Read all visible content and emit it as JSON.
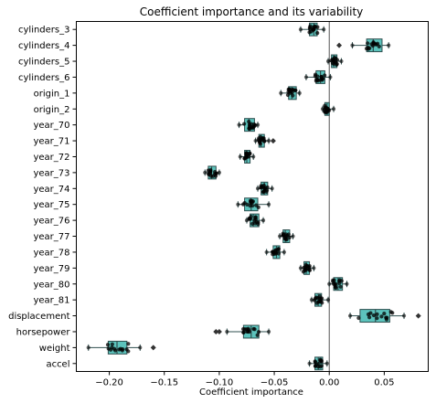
{
  "chart_data": {
    "type": "boxplot",
    "title": "Coefficient importance and its variability",
    "xlabel": "Coefficient importance",
    "ylabel": "",
    "xlim": [
      -0.23,
      0.09
    ],
    "xticks": [
      {
        "value": -0.2,
        "label": "−0.20"
      },
      {
        "value": -0.15,
        "label": "−0.15"
      },
      {
        "value": -0.1,
        "label": "−0.10"
      },
      {
        "value": -0.05,
        "label": "−0.05"
      },
      {
        "value": 0.0,
        "label": "0.00"
      },
      {
        "value": 0.05,
        "label": "0.05"
      }
    ],
    "reference_line": 0.0,
    "grid": false,
    "colors": {
      "box": "#3fb8b0",
      "box_edge": "#2f4f4f",
      "point": "#000000",
      "reference": "#555555"
    },
    "categories": [
      "cylinders_3",
      "cylinders_4",
      "cylinders_5",
      "cylinders_6",
      "origin_1",
      "origin_2",
      "year_70",
      "year_71",
      "year_72",
      "year_73",
      "year_74",
      "year_75",
      "year_76",
      "year_77",
      "year_78",
      "year_79",
      "year_80",
      "year_81",
      "displacement",
      "horsepower",
      "weight",
      "accel"
    ],
    "boxes": [
      {
        "name": "cylinders_3",
        "wlo": -0.026,
        "q1": -0.018,
        "med": -0.014,
        "q3": -0.011,
        "whi": -0.005
      },
      {
        "name": "cylinders_4",
        "wlo": 0.021,
        "q1": 0.034,
        "med": 0.04,
        "q3": 0.048,
        "whi": 0.054,
        "outliers": [
          0.009
        ]
      },
      {
        "name": "cylinders_5",
        "wlo": -0.001,
        "q1": 0.002,
        "med": 0.004,
        "q3": 0.007,
        "whi": 0.011
      },
      {
        "name": "cylinders_6",
        "wlo": -0.021,
        "q1": -0.012,
        "med": -0.008,
        "q3": -0.004,
        "whi": 0.001
      },
      {
        "name": "origin_1",
        "wlo": -0.044,
        "q1": -0.037,
        "med": -0.034,
        "q3": -0.03,
        "whi": -0.027
      },
      {
        "name": "origin_2",
        "wlo": -0.006,
        "q1": -0.004,
        "med": -0.002,
        "q3": 0.0,
        "whi": 0.004
      },
      {
        "name": "year_70",
        "wlo": -0.082,
        "q1": -0.077,
        "med": -0.073,
        "q3": -0.068,
        "whi": -0.065
      },
      {
        "name": "year_71",
        "wlo": -0.067,
        "q1": -0.064,
        "med": -0.062,
        "q3": -0.059,
        "whi": -0.055,
        "outliers": [
          -0.051
        ]
      },
      {
        "name": "year_72",
        "wlo": -0.081,
        "q1": -0.077,
        "med": -0.075,
        "q3": -0.072,
        "whi": -0.069
      },
      {
        "name": "year_73",
        "wlo": -0.113,
        "q1": -0.11,
        "med": -0.107,
        "q3": -0.103,
        "whi": -0.1
      },
      {
        "name": "year_74",
        "wlo": -0.065,
        "q1": -0.062,
        "med": -0.059,
        "q3": -0.056,
        "whi": -0.052
      },
      {
        "name": "year_75",
        "wlo": -0.083,
        "q1": -0.077,
        "med": -0.071,
        "q3": -0.065,
        "whi": -0.055
      },
      {
        "name": "year_76",
        "wlo": -0.075,
        "q1": -0.072,
        "med": -0.069,
        "q3": -0.064,
        "whi": -0.06
      },
      {
        "name": "year_77",
        "wlo": -0.045,
        "q1": -0.042,
        "med": -0.04,
        "q3": -0.036,
        "whi": -0.033
      },
      {
        "name": "year_78",
        "wlo": -0.057,
        "q1": -0.051,
        "med": -0.048,
        "q3": -0.045,
        "whi": -0.041
      },
      {
        "name": "year_79",
        "wlo": -0.026,
        "q1": -0.023,
        "med": -0.021,
        "q3": -0.018,
        "whi": -0.014
      },
      {
        "name": "year_80",
        "wlo": 0.0,
        "q1": 0.004,
        "med": 0.008,
        "q3": 0.012,
        "whi": 0.016
      },
      {
        "name": "year_81",
        "wlo": -0.016,
        "q1": -0.013,
        "med": -0.01,
        "q3": -0.007,
        "whi": -0.001
      },
      {
        "name": "displacement",
        "wlo": 0.019,
        "q1": 0.028,
        "med": 0.042,
        "q3": 0.055,
        "whi": 0.068,
        "outliers": [
          0.081
        ]
      },
      {
        "name": "horsepower",
        "wlo": -0.093,
        "q1": -0.078,
        "med": -0.071,
        "q3": -0.064,
        "whi": -0.055,
        "outliers": [
          -0.103,
          -0.1
        ]
      },
      {
        "name": "weight",
        "wlo": -0.219,
        "q1": -0.201,
        "med": -0.193,
        "q3": -0.184,
        "whi": -0.172,
        "outliers": [
          -0.16
        ]
      },
      {
        "name": "accel",
        "wlo": -0.018,
        "q1": -0.013,
        "med": -0.01,
        "q3": -0.006,
        "whi": -0.002
      }
    ]
  }
}
